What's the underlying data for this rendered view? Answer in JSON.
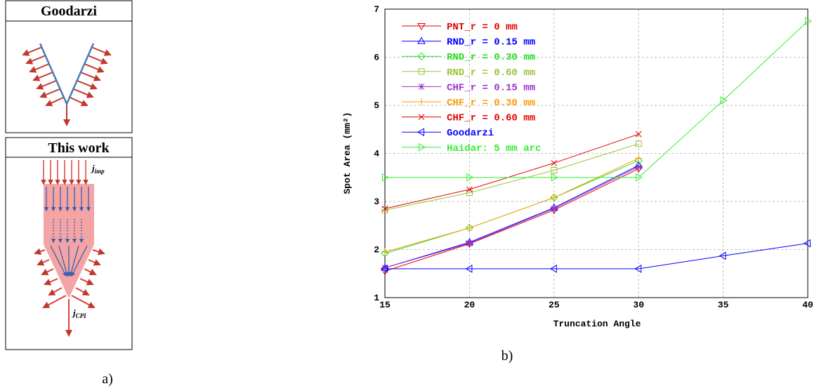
{
  "panel_a": {
    "top_header": "Goodarzi",
    "bottom_header": "This work",
    "j_imp": {
      "symbol": "j",
      "subscript": "imp"
    },
    "j_cpi": {
      "symbol": "j",
      "subscript": "CPI"
    },
    "caption": "a)"
  },
  "chart_data": {
    "type": "line",
    "caption": "b)",
    "x_label": "Truncation Angle",
    "y_label": "Spot Area (mm²)",
    "x": [
      15,
      20,
      25,
      30,
      35,
      40
    ],
    "xlim": [
      15,
      40
    ],
    "xticks": [
      15,
      20,
      25,
      30,
      35,
      40
    ],
    "ylim": [
      1,
      7
    ],
    "yticks": [
      1,
      2,
      3,
      4,
      5,
      6,
      7
    ],
    "grid": true,
    "legend": "upper left",
    "series": [
      {
        "name": "PNT_r = 0 mm",
        "color": "#e60000",
        "marker": "v",
        "values": [
          1.55,
          2.12,
          2.82,
          3.68,
          null,
          null
        ]
      },
      {
        "name": "RND_r = 0.15 mm",
        "color": "#0000ff",
        "marker": "^",
        "values": [
          1.62,
          2.15,
          2.87,
          3.75,
          null,
          null
        ]
      },
      {
        "name": "RND_r = 0.30 mm",
        "color": "#22dd22",
        "marker": "D",
        "values": [
          1.92,
          2.45,
          3.08,
          3.85,
          null,
          null
        ]
      },
      {
        "name": "RND_r = 0.60 mm",
        "color": "#99c438",
        "marker": "s",
        "values": [
          2.82,
          3.18,
          3.65,
          4.2,
          null,
          null
        ]
      },
      {
        "name": "CHF_r = 0.15 mm",
        "color": "#9933cc",
        "marker": "*",
        "values": [
          1.62,
          2.13,
          2.85,
          3.72,
          null,
          null
        ]
      },
      {
        "name": "CHF_r = 0.30 mm",
        "color": "#ff9900",
        "marker": "+",
        "values": [
          1.95,
          2.45,
          3.08,
          3.9,
          null,
          null
        ]
      },
      {
        "name": "CHF_r = 0.60 mm",
        "color": "#e60000",
        "marker": "x",
        "values": [
          2.85,
          3.25,
          3.8,
          4.4,
          null,
          null
        ]
      },
      {
        "name": "Goodarzi",
        "color": "#0000ff",
        "marker": "<",
        "values": [
          1.6,
          1.6,
          1.6,
          1.6,
          1.87,
          2.13
        ]
      },
      {
        "name": "Haidar: 5 mm arc",
        "color": "#33ee33",
        "marker": ">",
        "values": [
          3.5,
          3.5,
          3.5,
          3.5,
          5.1,
          6.75
        ]
      }
    ]
  }
}
